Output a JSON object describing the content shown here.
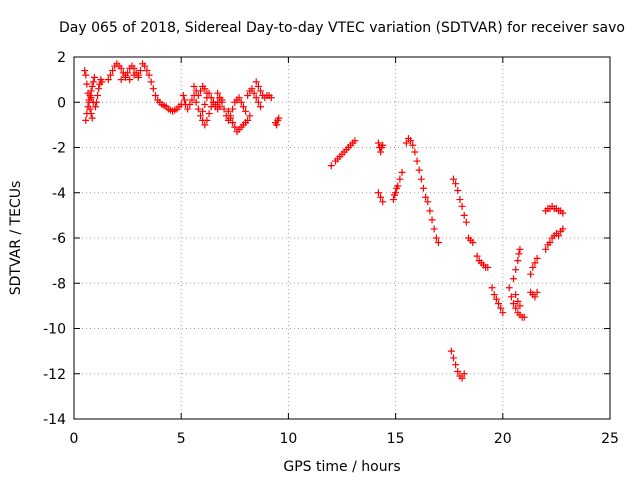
{
  "chart_data": {
    "type": "scatter",
    "title": "Day 065 of 2018, Sidereal Day-to-day VTEC variation (SDTVAR) for receiver savo",
    "xlabel": "GPS time / hours",
    "ylabel": "SDTVAR / TECUs",
    "xlim": [
      0,
      25
    ],
    "ylim": [
      -14,
      2
    ],
    "xticks": [
      0,
      5,
      10,
      15,
      20,
      25
    ],
    "yticks": [
      -14,
      -12,
      -10,
      -8,
      -6,
      -4,
      -2,
      0,
      2
    ],
    "grid": true,
    "marker": "+",
    "series": [
      {
        "name": "SDTVAR",
        "color": "#ff0000",
        "segments": [
          [
            [
              0.5,
              1.4
            ],
            [
              0.55,
              1.2
            ],
            [
              0.6,
              0.8
            ],
            [
              0.65,
              0.4
            ],
            [
              0.7,
              0.0
            ],
            [
              0.75,
              -0.3
            ],
            [
              0.8,
              -0.5
            ],
            [
              0.85,
              -0.7
            ]
          ],
          [
            [
              0.55,
              -0.8
            ],
            [
              0.6,
              -0.5
            ],
            [
              0.65,
              -0.2
            ],
            [
              0.7,
              0.1
            ],
            [
              0.75,
              0.3
            ],
            [
              0.8,
              0.5
            ],
            [
              0.85,
              0.7
            ],
            [
              0.9,
              0.9
            ],
            [
              0.95,
              1.1
            ]
          ],
          [
            [
              0.8,
              0.2
            ],
            [
              0.9,
              0.0
            ],
            [
              1.0,
              -0.2
            ],
            [
              1.05,
              0.0
            ],
            [
              1.1,
              0.3
            ],
            [
              1.15,
              0.6
            ],
            [
              1.2,
              0.8
            ],
            [
              1.25,
              1.0
            ],
            [
              1.3,
              0.9
            ]
          ],
          [
            [
              1.6,
              1.0
            ],
            [
              1.7,
              1.2
            ],
            [
              1.8,
              1.4
            ],
            [
              1.9,
              1.6
            ],
            [
              2.0,
              1.7
            ],
            [
              2.1,
              1.6
            ],
            [
              2.2,
              1.5
            ],
            [
              2.3,
              1.3
            ],
            [
              2.4,
              1.2
            ],
            [
              2.5,
              1.3
            ],
            [
              2.6,
              1.5
            ],
            [
              2.7,
              1.6
            ],
            [
              2.8,
              1.5
            ],
            [
              2.9,
              1.3
            ],
            [
              3.0,
              1.2
            ],
            [
              3.1,
              1.4
            ],
            [
              3.2,
              1.7
            ],
            [
              3.3,
              1.6
            ],
            [
              3.4,
              1.4
            ],
            [
              3.5,
              1.2
            ]
          ],
          [
            [
              2.2,
              1.0
            ],
            [
              2.4,
              1.1
            ],
            [
              2.6,
              1.0
            ],
            [
              2.8,
              1.2
            ],
            [
              3.0,
              1.1
            ]
          ],
          [
            [
              3.6,
              0.9
            ],
            [
              3.7,
              0.6
            ],
            [
              3.8,
              0.3
            ],
            [
              3.9,
              0.1
            ],
            [
              4.0,
              0.0
            ],
            [
              4.1,
              -0.1
            ],
            [
              4.2,
              -0.15
            ],
            [
              4.3,
              -0.2
            ],
            [
              4.4,
              -0.3
            ],
            [
              4.5,
              -0.35
            ],
            [
              4.6,
              -0.4
            ],
            [
              4.7,
              -0.35
            ],
            [
              4.8,
              -0.3
            ],
            [
              4.9,
              -0.2
            ],
            [
              5.0,
              -0.1
            ]
          ],
          [
            [
              5.1,
              0.3
            ],
            [
              5.15,
              0.1
            ],
            [
              5.2,
              -0.1
            ],
            [
              5.3,
              -0.3
            ],
            [
              5.4,
              -0.1
            ],
            [
              5.5,
              0.1
            ],
            [
              5.6,
              0.3
            ],
            [
              5.7,
              0.0
            ],
            [
              5.8,
              -0.3
            ],
            [
              5.9,
              -0.6
            ],
            [
              6.0,
              -0.4
            ],
            [
              6.1,
              -0.1
            ],
            [
              6.2,
              0.2
            ],
            [
              6.3,
              0.4
            ],
            [
              6.4,
              0.2
            ],
            [
              6.5,
              0.0
            ],
            [
              6.6,
              -0.2
            ],
            [
              6.7,
              0.0
            ],
            [
              6.8,
              0.2
            ]
          ],
          [
            [
              5.6,
              0.7
            ],
            [
              5.7,
              0.5
            ],
            [
              5.8,
              0.3
            ],
            [
              5.9,
              0.5
            ],
            [
              6.0,
              0.7
            ],
            [
              6.1,
              0.6
            ],
            [
              6.2,
              0.4
            ]
          ],
          [
            [
              6.0,
              -0.8
            ],
            [
              6.1,
              -1.0
            ],
            [
              6.2,
              -0.8
            ],
            [
              6.3,
              -0.5
            ],
            [
              6.4,
              -0.2
            ],
            [
              6.5,
              0.0
            ],
            [
              6.6,
              -0.1
            ],
            [
              6.7,
              -0.3
            ],
            [
              6.8,
              -0.2
            ],
            [
              6.9,
              0.1
            ]
          ],
          [
            [
              6.7,
              0.4
            ],
            [
              6.8,
              0.2
            ],
            [
              6.9,
              0.0
            ],
            [
              7.0,
              -0.3
            ],
            [
              7.1,
              -0.6
            ],
            [
              7.2,
              -0.8
            ],
            [
              7.3,
              -0.6
            ],
            [
              7.4,
              -0.3
            ],
            [
              7.5,
              0.0
            ],
            [
              7.6,
              0.1
            ],
            [
              7.7,
              0.2
            ],
            [
              7.8,
              0.0
            ],
            [
              7.9,
              -0.2
            ],
            [
              8.0,
              -0.4
            ]
          ],
          [
            [
              7.2,
              -0.4
            ],
            [
              7.3,
              -0.7
            ],
            [
              7.4,
              -0.9
            ],
            [
              7.5,
              -1.1
            ],
            [
              7.6,
              -1.3
            ],
            [
              7.7,
              -1.2
            ],
            [
              7.8,
              -1.1
            ],
            [
              7.9,
              -1.0
            ],
            [
              8.0,
              -0.9
            ],
            [
              8.1,
              -0.8
            ],
            [
              8.2,
              -0.6
            ]
          ],
          [
            [
              8.1,
              0.3
            ],
            [
              8.2,
              0.5
            ],
            [
              8.3,
              0.6
            ],
            [
              8.4,
              0.4
            ],
            [
              8.5,
              0.2
            ],
            [
              8.6,
              0.0
            ],
            [
              8.7,
              -0.2
            ]
          ],
          [
            [
              8.5,
              0.9
            ],
            [
              8.6,
              0.7
            ],
            [
              8.7,
              0.5
            ],
            [
              8.8,
              0.3
            ],
            [
              8.9,
              0.2
            ],
            [
              9.0,
              0.3
            ],
            [
              9.1,
              0.3
            ],
            [
              9.2,
              0.2
            ]
          ],
          [
            [
              9.4,
              -0.9
            ],
            [
              9.45,
              -1.0
            ],
            [
              9.5,
              -0.8
            ],
            [
              9.55,
              -0.7
            ]
          ],
          [
            [
              12.0,
              -2.8
            ],
            [
              12.2,
              -2.6
            ],
            [
              12.4,
              -2.4
            ],
            [
              12.6,
              -2.2
            ],
            [
              12.8,
              -2.0
            ],
            [
              13.0,
              -1.8
            ],
            [
              13.1,
              -1.7
            ],
            [
              12.3,
              -2.5
            ],
            [
              12.5,
              -2.3
            ],
            [
              12.7,
              -2.1
            ],
            [
              12.9,
              -1.9
            ]
          ],
          [
            [
              14.2,
              -1.8
            ],
            [
              14.25,
              -2.0
            ],
            [
              14.3,
              -2.2
            ],
            [
              14.35,
              -2.0
            ],
            [
              14.4,
              -1.9
            ]
          ],
          [
            [
              14.2,
              -4.0
            ],
            [
              14.3,
              -4.2
            ],
            [
              14.4,
              -4.4
            ]
          ],
          [
            [
              14.9,
              -4.3
            ],
            [
              15.0,
              -4.0
            ],
            [
              15.1,
              -3.7
            ],
            [
              15.2,
              -3.4
            ],
            [
              15.3,
              -3.1
            ],
            [
              14.95,
              -4.1
            ],
            [
              15.05,
              -3.8
            ]
          ],
          [
            [
              15.5,
              -1.8
            ],
            [
              15.6,
              -1.6
            ],
            [
              15.7,
              -1.7
            ],
            [
              15.8,
              -1.9
            ],
            [
              15.9,
              -2.2
            ],
            [
              16.0,
              -2.6
            ],
            [
              16.1,
              -3.0
            ],
            [
              16.2,
              -3.4
            ],
            [
              16.3,
              -3.8
            ],
            [
              16.4,
              -4.2
            ]
          ],
          [
            [
              16.5,
              -4.4
            ],
            [
              16.6,
              -4.8
            ],
            [
              16.7,
              -5.2
            ],
            [
              16.8,
              -5.6
            ],
            [
              16.9,
              -6.0
            ],
            [
              17.0,
              -6.2
            ]
          ],
          [
            [
              17.6,
              -11.0
            ],
            [
              17.7,
              -11.3
            ],
            [
              17.8,
              -11.6
            ],
            [
              17.9,
              -11.9
            ],
            [
              18.0,
              -12.1
            ],
            [
              18.1,
              -12.2
            ],
            [
              18.2,
              -12.0
            ]
          ],
          [
            [
              17.7,
              -3.4
            ],
            [
              17.8,
              -3.6
            ],
            [
              17.9,
              -3.9
            ],
            [
              18.0,
              -4.3
            ],
            [
              18.1,
              -4.6
            ],
            [
              18.2,
              -5.0
            ],
            [
              18.3,
              -5.3
            ]
          ],
          [
            [
              18.4,
              -6.0
            ],
            [
              18.5,
              -6.1
            ],
            [
              18.6,
              -6.2
            ]
          ],
          [
            [
              18.8,
              -6.8
            ],
            [
              18.9,
              -7.0
            ],
            [
              19.0,
              -7.1
            ],
            [
              19.1,
              -7.2
            ],
            [
              19.2,
              -7.3
            ],
            [
              19.3,
              -7.3
            ]
          ],
          [
            [
              19.5,
              -8.2
            ],
            [
              19.6,
              -8.5
            ],
            [
              19.7,
              -8.7
            ],
            [
              19.8,
              -8.9
            ],
            [
              19.9,
              -9.1
            ],
            [
              20.0,
              -9.3
            ]
          ],
          [
            [
              20.3,
              -8.2
            ],
            [
              20.4,
              -8.6
            ],
            [
              20.5,
              -8.9
            ],
            [
              20.6,
              -9.1
            ],
            [
              20.7,
              -9.3
            ],
            [
              20.8,
              -9.4
            ],
            [
              20.9,
              -9.5
            ],
            [
              21.0,
              -9.5
            ]
          ],
          [
            [
              20.5,
              -7.8
            ],
            [
              20.6,
              -7.4
            ],
            [
              20.7,
              -7.0
            ],
            [
              20.75,
              -6.7
            ],
            [
              20.8,
              -6.5
            ]
          ],
          [
            [
              20.6,
              -8.5
            ],
            [
              20.7,
              -8.8
            ],
            [
              20.8,
              -9.0
            ]
          ],
          [
            [
              21.3,
              -8.4
            ],
            [
              21.4,
              -8.5
            ],
            [
              21.5,
              -8.6
            ],
            [
              21.6,
              -8.4
            ]
          ],
          [
            [
              21.3,
              -7.6
            ],
            [
              21.4,
              -7.3
            ],
            [
              21.5,
              -7.1
            ],
            [
              21.6,
              -6.9
            ]
          ],
          [
            [
              22.0,
              -6.5
            ],
            [
              22.1,
              -6.3
            ],
            [
              22.2,
              -6.2
            ],
            [
              22.3,
              -6.0
            ],
            [
              22.4,
              -5.9
            ],
            [
              22.5,
              -5.8
            ],
            [
              22.6,
              -5.9
            ],
            [
              22.7,
              -5.7
            ],
            [
              22.8,
              -5.6
            ]
          ],
          [
            [
              22.0,
              -4.8
            ],
            [
              22.1,
              -4.7
            ],
            [
              22.2,
              -4.7
            ],
            [
              22.3,
              -4.6
            ],
            [
              22.4,
              -4.7
            ],
            [
              22.5,
              -4.7
            ],
            [
              22.6,
              -4.8
            ],
            [
              22.7,
              -4.8
            ],
            [
              22.8,
              -4.9
            ]
          ]
        ]
      }
    ]
  }
}
